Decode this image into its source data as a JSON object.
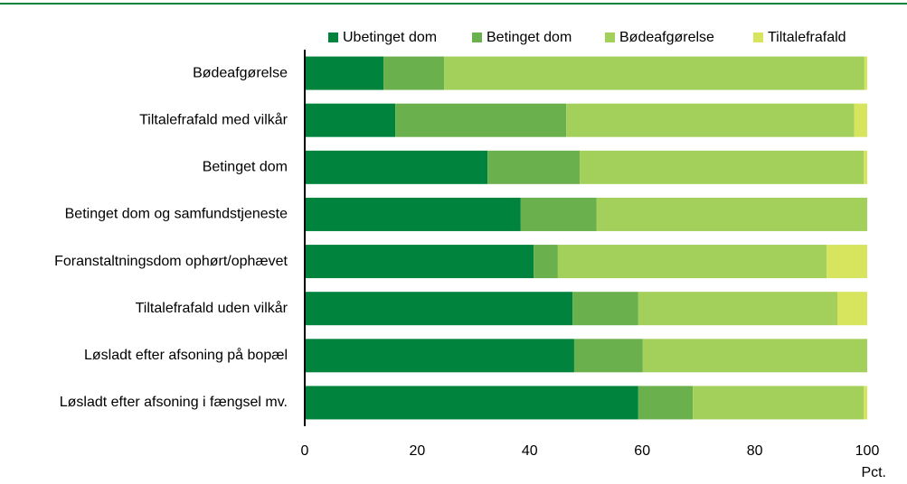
{
  "chart_data": {
    "type": "stacked-barh",
    "categories": [
      "Bødeafgørelse",
      "Tiltalefrafald med vilkår",
      "Betinget dom",
      "Betinget dom og samfundstjeneste",
      "Foranstaltningsdom ophørt/ophævet",
      "Tiltalefrafald uden vilkår",
      "Løsladt efter afsoning på bopæl",
      "Løsladt efter afsoning i fængsel mv."
    ],
    "series": [
      {
        "name": "Ubetinget dom",
        "color": "#00843d",
        "values": [
          14.0,
          16.1,
          32.5,
          38.4,
          40.7,
          47.6,
          47.9,
          59.3
        ]
      },
      {
        "name": "Betinget dom",
        "color": "#6ab04c",
        "values": [
          10.8,
          30.4,
          16.4,
          13.5,
          4.3,
          11.7,
          12.2,
          9.7
        ]
      },
      {
        "name": "Bødeafgørelse",
        "color": "#a3d05a",
        "values": [
          74.7,
          51.2,
          50.5,
          48.1,
          47.8,
          35.4,
          39.9,
          30.4
        ]
      },
      {
        "name": "Tiltalefrafald",
        "color": "#d6e45e",
        "values": [
          0.5,
          2.3,
          0.6,
          0,
          7.2,
          5.3,
          0,
          0.6
        ]
      }
    ],
    "xlabel": "Pct.",
    "xlim": [
      0,
      100
    ],
    "xticks": [
      0,
      20,
      40,
      60,
      80,
      100
    ]
  }
}
